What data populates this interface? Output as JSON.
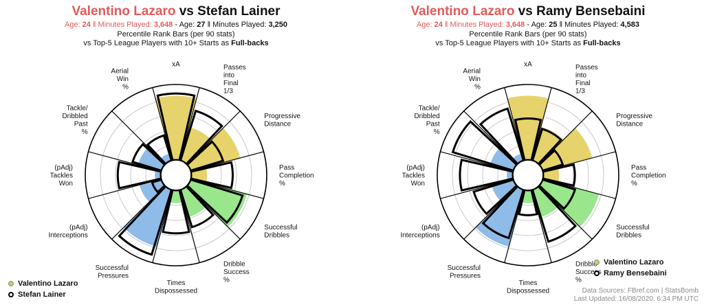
{
  "colors": {
    "subject_fill": "#e6d36b",
    "passing_fill": "#e6d36b",
    "dribbling_fill": "#99e68c",
    "defending_fill": "#8fbbe8",
    "comparison_stroke": "#000000",
    "title_red": "#e05a5a",
    "grid": "#bbbbbb"
  },
  "legend": {
    "subject_dot": "#b8d96a",
    "comparison_dot": "#000000"
  },
  "footer": {
    "line1": "Data Sources: FBref.com | StatsBomb",
    "line2": "Last Updated: 16/08/2020, 6:34 PM UTC"
  },
  "panels": [
    {
      "title_player1": "Valentino Lazaro",
      "title_vs": " vs ",
      "title_player2": "Stefan Lainer",
      "age_label": "Age: ",
      "age1": "24",
      "sep": " ‖ ",
      "minutes_label": "Minutes Played: ",
      "minutes1": "3,648",
      "dash": " - ",
      "age2": "27",
      "minutes2": "3,250",
      "subtitle2": "Percentile Rank Bars (per 90 stats)",
      "subtitle3_pre": "vs Top-5 League Players with 10+ Starts as ",
      "subtitle3_bold": "Full-backs",
      "legend_player1": "Valentino Lazaro",
      "legend_player2": "Stefan Lainer",
      "chart_data": {
        "type": "polar-bar",
        "categories": [
          "xA",
          "Passes into Final 1/3",
          "Progressive Distance",
          "Pass Completion %",
          "Successful Dribbles",
          "Dribble Success %",
          "Times Dispossessed",
          "Successful Pressures",
          "(pAdj) Interceptions",
          "(pAdj) Tackles Won",
          "Tackle/ Dribbled Past %",
          "Aerial Win %"
        ],
        "labels": [
          [
            "xA"
          ],
          [
            "Passes",
            "into",
            "Final",
            "1/3"
          ],
          [
            "Progressive",
            "Distance"
          ],
          [
            "Pass",
            "Completion",
            "%"
          ],
          [
            "Successful",
            "Dribbles"
          ],
          [
            "Dribble",
            "Success",
            "%"
          ],
          [
            "Times",
            "Dispossessed"
          ],
          [
            "Successful",
            "Pressures"
          ],
          [
            "(pAdj)",
            "Interceptions"
          ],
          [
            "(pAdj)",
            "Tackles",
            "Won"
          ],
          [
            "Tackle/",
            "Dribbled",
            "Past",
            "%"
          ],
          [
            "Aerial",
            "Win",
            "%"
          ]
        ],
        "ylim": [
          0,
          100
        ],
        "series": [
          {
            "name": "Valentino Lazaro",
            "style": "filled",
            "values": [
              85,
              46,
              68,
              21,
              77,
              38,
              17,
              78,
              30,
              8,
              32,
              10
            ]
          },
          {
            "name": "Stefan Lainer",
            "style": "outline",
            "values": [
              88,
              69,
              45,
              55,
              72,
              52,
              57,
              90,
              13,
              57,
              40,
              35
            ]
          }
        ]
      }
    },
    {
      "title_player1": "Valentino Lazaro",
      "title_vs": " vs ",
      "title_player2": "Ramy Bensebaini",
      "age_label": "Age: ",
      "age1": "24",
      "sep": " ‖ ",
      "minutes_label": "Minutes Played: ",
      "minutes1": "3,648",
      "dash": " - ",
      "age2": "25",
      "minutes2": "4,583",
      "subtitle2": "Percentile Rank Bars (per 90 stats)",
      "subtitle3_pre": "vs Top-5 League Players with 10+ Starts as ",
      "subtitle3_bold": "Full-backs",
      "legend_player1": "Valentino Lazaro",
      "legend_player2": "Ramy Bensebaini",
      "chart_data": {
        "type": "polar-bar",
        "categories": [
          "xA",
          "Passes into Final 1/3",
          "Progressive Distance",
          "Pass Completion %",
          "Successful Dribbles",
          "Dribble Success %",
          "Times Dispossessed",
          "Successful Pressures",
          "(pAdj) Interceptions",
          "(pAdj) Tackles Won",
          "Tackle/ Dribbled Past %",
          "Aerial Win %"
        ],
        "labels": [
          [
            "xA"
          ],
          [
            "Passes",
            "into",
            "Final",
            "1/3"
          ],
          [
            "Progressive",
            "Distance"
          ],
          [
            "Pass",
            "Completion",
            "%"
          ],
          [
            "Successful",
            "Dribbles"
          ],
          [
            "Dribble",
            "Success",
            "%"
          ],
          [
            "Times",
            "Dispossessed"
          ],
          [
            "Successful",
            "Pressures"
          ],
          [
            "(pAdj)",
            "Interceptions"
          ],
          [
            "(pAdj)",
            "Tackles",
            "Won"
          ],
          [
            "Tackle/",
            "Dribbled",
            "Past",
            "%"
          ],
          [
            "Aerial",
            "Win",
            "%"
          ]
        ],
        "ylim": [
          0,
          100
        ],
        "series": [
          {
            "name": "Valentino Lazaro",
            "style": "filled",
            "values": [
              85,
              46,
              68,
              21,
              77,
              38,
              17,
              78,
              30,
              8,
              32,
              10
            ]
          },
          {
            "name": "Ramy Bensebaini",
            "style": "outline",
            "values": [
              55,
              44,
              28,
              42,
              45,
              72,
              33,
              67,
              55,
              70,
              84,
              72
            ]
          }
        ]
      }
    }
  ]
}
